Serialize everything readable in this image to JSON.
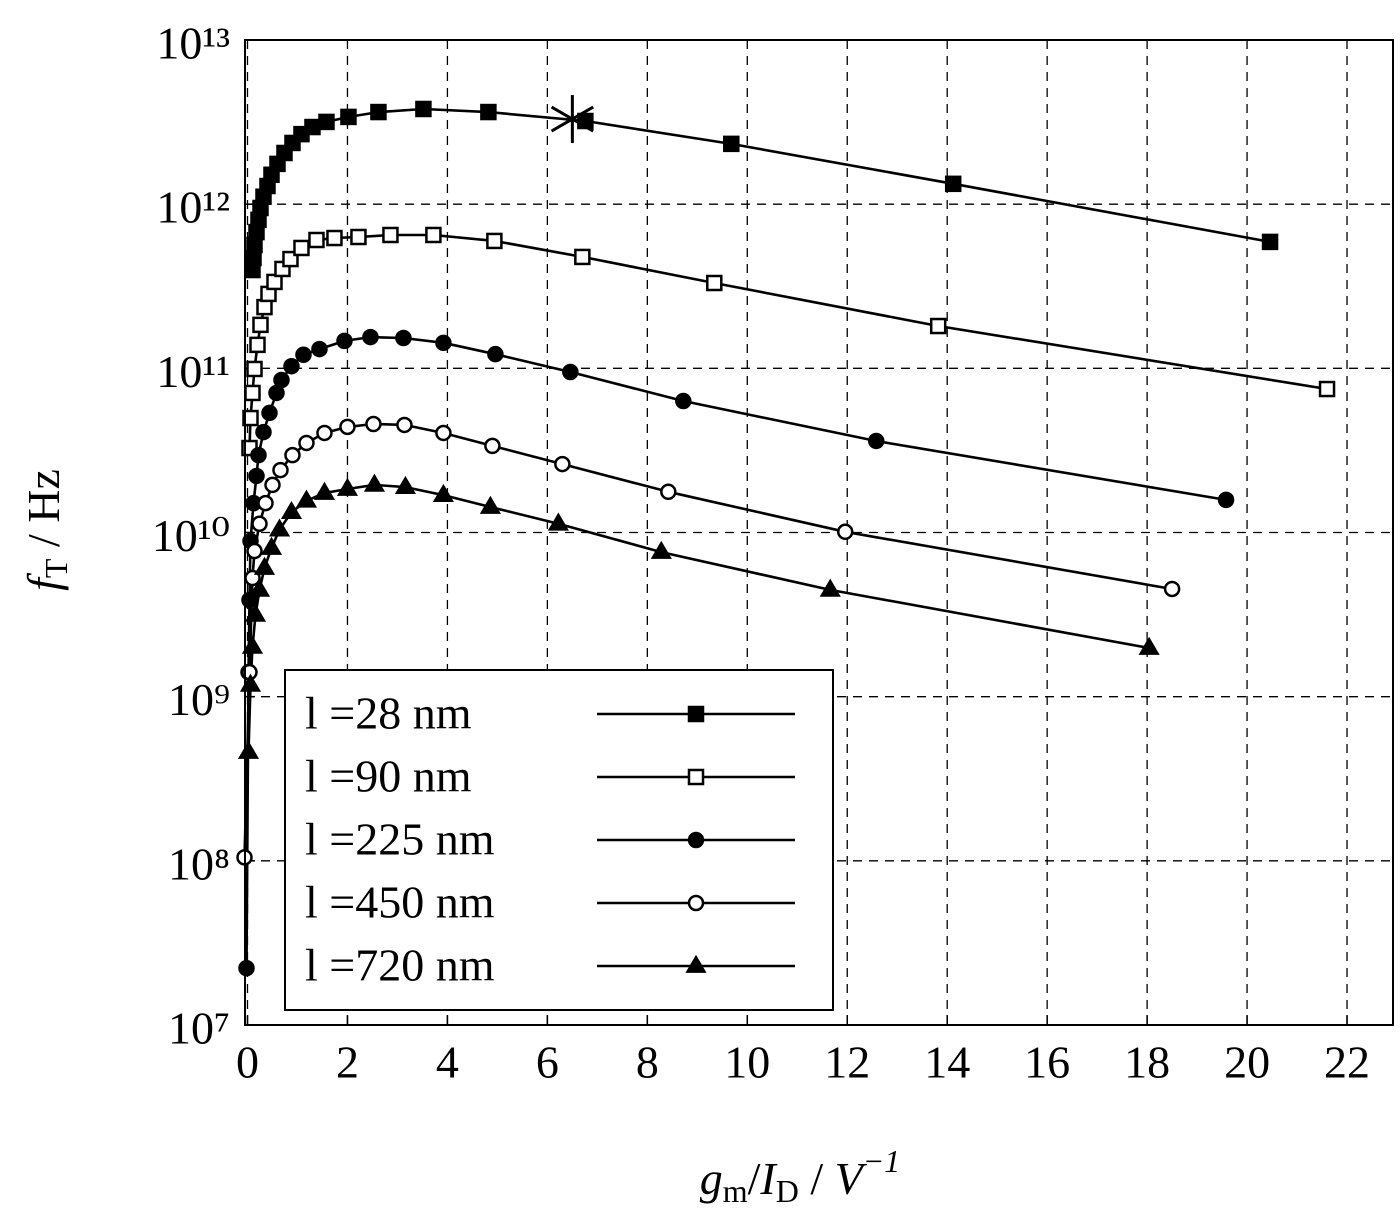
{
  "chart_data": {
    "type": "line",
    "xlim": [
      -0.05,
      22.92
    ],
    "xticks": [
      0,
      2,
      4,
      6,
      8,
      10,
      12,
      14,
      16,
      18,
      20,
      22
    ],
    "ylim": [
      10000000.0,
      10000000000000.0
    ],
    "log_y": true,
    "yticks": [
      {
        "value": 10000000.0,
        "label": "10⁷"
      },
      {
        "value": 100000000.0,
        "label": "10⁸"
      },
      {
        "value": 1000000000.0,
        "label": "10⁹"
      },
      {
        "value": 10000000000.0,
        "label": "10¹⁰"
      },
      {
        "value": 100000000000.0,
        "label": "10¹¹"
      },
      {
        "value": 1000000000000.0,
        "label": "10¹²"
      },
      {
        "value": 10000000000000.0,
        "label": "10¹³"
      }
    ],
    "grid": true,
    "legend": "lower left",
    "xlabel": [
      {
        "text": "g",
        "style": "italic"
      },
      {
        "text": "m",
        "style": "sub"
      },
      {
        "text": "/",
        "style": "normal"
      },
      {
        "text": "I",
        "style": "italic"
      },
      {
        "text": "D",
        "style": "sub"
      },
      {
        "text": "  /  ",
        "style": "normal"
      },
      {
        "text": "V",
        "style": "italic"
      },
      {
        "text": "−1",
        "style": "sup"
      }
    ],
    "ylabel": [
      {
        "text": "f",
        "style": "italic"
      },
      {
        "text": "T",
        "style": "sub"
      },
      {
        "text": "  /  Hz",
        "style": "normal"
      }
    ],
    "annotation_point": {
      "x": 6.5,
      "y": 3300000000000.0,
      "marker": "star"
    },
    "series": [
      {
        "name": "l =28 nm",
        "color": "#000000",
        "marker": "square",
        "filled": true,
        "x": [
          0.1,
          0.12,
          0.14,
          0.18,
          0.22,
          0.26,
          0.32,
          0.4,
          0.48,
          0.6,
          0.74,
          0.9,
          1.08,
          1.3,
          1.58,
          2.02,
          2.62,
          3.52,
          4.82,
          6.76,
          9.68,
          14.12,
          20.46
        ],
        "values": [
          397000000000.0,
          470000000000.0,
          564000000000.0,
          676000000000.0,
          802000000000.0,
          948000000000.0,
          1110000000000.0,
          1290000000000.0,
          1510000000000.0,
          1760000000000.0,
          2050000000000.0,
          2360000000000.0,
          2670000000000.0,
          2950000000000.0,
          3170000000000.0,
          3400000000000.0,
          3640000000000.0,
          3800000000000.0,
          3640000000000.0,
          3210000000000.0,
          2330000000000.0,
          1330000000000.0,
          589000000000.0
        ]
      },
      {
        "name": "l =90 nm",
        "color": "#000000",
        "marker": "square",
        "filled": false,
        "x": [
          0.04,
          0.06,
          0.1,
          0.14,
          0.2,
          0.26,
          0.34,
          0.42,
          0.54,
          0.7,
          0.86,
          1.08,
          1.38,
          1.74,
          2.22,
          2.86,
          3.72,
          4.94,
          6.7,
          9.34,
          13.82,
          21.6
        ],
        "values": [
          32700000000.0,
          49800000000.0,
          70800000000.0,
          99100000000.0,
          139000000000.0,
          184000000000.0,
          236000000000.0,
          284000000000.0,
          336000000000.0,
          403000000000.0,
          463000000000.0,
          541000000000.0,
          605000000000.0,
          622000000000.0,
          631000000000.0,
          649000000000.0,
          649000000000.0,
          597000000000.0,
          477000000000.0,
          331000000000.0,
          181000000000.0,
          74800000000.0
        ]
      },
      {
        "name": "l =225 nm",
        "color": "#000000",
        "marker": "circle",
        "filled": true,
        "x": [
          -0.02,
          0.02,
          0.04,
          0.06,
          0.12,
          0.18,
          0.22,
          0.32,
          0.44,
          0.58,
          0.68,
          0.88,
          1.12,
          1.44,
          1.94,
          2.46,
          3.12,
          3.92,
          4.96,
          6.46,
          8.72,
          12.58,
          19.58
        ],
        "values": [
          22200000.0,
          1410000000.0,
          3880000000.0,
          8870000000.0,
          15100000000.0,
          22100000000.0,
          29600000000.0,
          40900000000.0,
          53500000000.0,
          70800000000.0,
          84900000000.0,
          103000000000.0,
          121000000000.0,
          131000000000.0,
          147000000000.0,
          155000000000.0,
          153000000000.0,
          143000000000.0,
          122000000000.0,
          95000000000.0,
          63200000000.0,
          36100000000.0,
          15800000000.0
        ]
      },
      {
        "name": "l =450 nm",
        "color": "#000000",
        "marker": "circle",
        "filled": false,
        "x": [
          -0.06,
          0.04,
          0.1,
          0.14,
          0.24,
          0.36,
          0.5,
          0.66,
          0.9,
          1.18,
          1.54,
          2.0,
          2.52,
          3.14,
          3.92,
          4.9,
          6.3,
          8.42,
          11.96,
          18.5
        ],
        "values": [
          105000000.0,
          1410000000.0,
          5280000000.0,
          7710000000.0,
          11300000000.0,
          15100000000.0,
          19500000000.0,
          24000000000.0,
          29600000000.0,
          35100000000.0,
          40400000000.0,
          44000000000.0,
          45800000000.0,
          45200000000.0,
          40400000000.0,
          33700000000.0,
          26100000000.0,
          17700000000.0,
          10100000000.0,
          4530000000.0
        ]
      },
      {
        "name": "l =720 nm",
        "color": "#000000",
        "marker": "triangle",
        "filled": true,
        "x": [
          0.02,
          0.06,
          0.1,
          0.16,
          0.24,
          0.34,
          0.48,
          0.64,
          0.88,
          1.18,
          1.54,
          2.0,
          2.54,
          3.16,
          3.92,
          4.86,
          6.22,
          8.28,
          11.66,
          18.04
        ],
        "values": [
          460000000.0,
          1180000000.0,
          2010000000.0,
          3150000000.0,
          4470000000.0,
          6080000000.0,
          8050000000.0,
          10400000000.0,
          13300000000.0,
          15600000000.0,
          17400000000.0,
          18400000000.0,
          19500000000.0,
          18900000000.0,
          16900000000.0,
          14300000000.0,
          11300000000.0,
          7600000000.0,
          4470000000.0,
          1980000000.0
        ]
      }
    ]
  }
}
